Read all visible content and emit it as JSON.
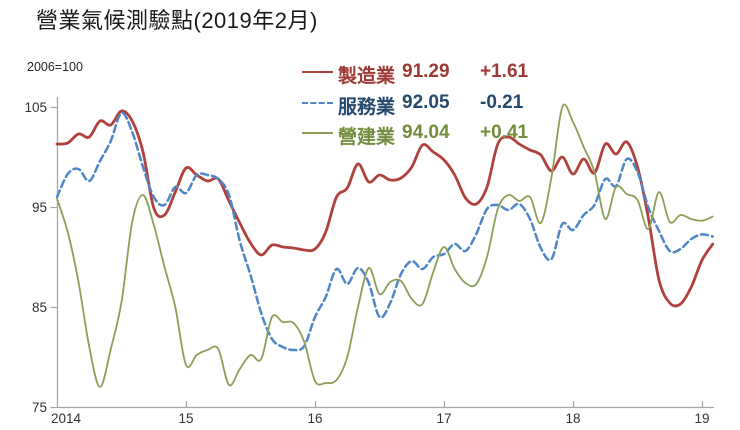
{
  "page": {
    "title": "營業氣候測驗點(2019年2月)"
  },
  "legend": {
    "items": [
      {
        "label": "製造業",
        "value": "91.29",
        "change": "+1.61",
        "text_color": "#9e3a35",
        "line_color": "#b0413c",
        "line_style": "solid"
      },
      {
        "label": "服務業",
        "value": "92.05",
        "change": "-0.21",
        "text_color": "#25496b",
        "line_color": "#4e86c6",
        "line_style": "dashed"
      },
      {
        "label": "營建業",
        "value": "94.04",
        "change": "+0.41",
        "text_color": "#748d3d",
        "line_color": "#8b9f57",
        "line_style": "solid"
      }
    ]
  },
  "chart_data": {
    "type": "line",
    "title": "營業氣候測驗點(2019年2月)",
    "y_note": "2006=100",
    "x_start_year": 2014,
    "x_step_months": 1,
    "x_tick_labels": [
      "2014",
      "15",
      "16",
      "17",
      "18",
      "19"
    ],
    "y_ticks": [
      105,
      95,
      85,
      75
    ],
    "ylim": [
      75,
      105.5
    ],
    "xlim": [
      2014.0,
      2019.17
    ],
    "grid": false,
    "legend_position": "top",
    "axis_color": "#a6a6a6",
    "tick_label_color": "#333333",
    "series": [
      {
        "name": "製造業",
        "color": "#b0413c",
        "dash": null,
        "width": 2.8,
        "values": [
          101.3,
          101.4,
          102.3,
          102.0,
          103.6,
          103.2,
          104.6,
          103.6,
          100.5,
          94.9,
          94.2,
          96.5,
          98.9,
          98.2,
          97.6,
          97.8,
          95.6,
          93.4,
          91.4,
          90.2,
          91.2,
          91.0,
          90.9,
          90.7,
          90.8,
          92.5,
          96.0,
          96.9,
          99.3,
          97.5,
          98.2,
          97.7,
          97.9,
          99.0,
          101.2,
          100.5,
          99.7,
          98.2,
          95.9,
          95.3,
          97.0,
          101.3,
          102.0,
          101.3,
          100.7,
          100.2,
          98.6,
          100.0,
          98.3,
          99.8,
          98.4,
          101.3,
          100.3,
          101.5,
          99.0,
          94.0,
          87.7,
          85.4,
          85.3,
          87.0,
          89.68,
          91.29
        ]
      },
      {
        "name": "服務業",
        "color": "#4e86c6",
        "dash": "7 4",
        "width": 2.5,
        "values": [
          96.0,
          98.3,
          98.8,
          97.6,
          99.6,
          101.6,
          104.4,
          102.5,
          99.0,
          96.0,
          95.2,
          97.0,
          96.4,
          98.2,
          98.2,
          97.8,
          96.2,
          91.6,
          88.2,
          84.4,
          81.8,
          81.0,
          80.7,
          81.1,
          84.0,
          86.0,
          88.8,
          87.3,
          88.9,
          87.4,
          84.0,
          85.4,
          88.3,
          89.6,
          88.8,
          90.0,
          90.3,
          91.3,
          90.6,
          92.3,
          94.8,
          95.2,
          94.7,
          95.3,
          93.8,
          90.9,
          89.8,
          93.3,
          92.7,
          94.2,
          95.2,
          97.8,
          97.1,
          99.8,
          98.5,
          95.0,
          92.6,
          90.6,
          90.8,
          91.8,
          92.26,
          92.05
        ]
      },
      {
        "name": "營建業",
        "color": "#8b9f57",
        "dash": null,
        "width": 1.8,
        "values": [
          95.8,
          92.5,
          87.5,
          81.0,
          77.0,
          80.8,
          85.5,
          93.5,
          96.2,
          93.2,
          89.0,
          85.0,
          79.2,
          80.2,
          80.7,
          80.8,
          77.2,
          78.8,
          80.2,
          79.8,
          84.0,
          83.5,
          83.4,
          81.5,
          77.6,
          77.4,
          77.7,
          80.0,
          85.0,
          88.9,
          86.3,
          87.5,
          87.6,
          85.8,
          85.3,
          88.5,
          91.0,
          88.8,
          87.4,
          87.3,
          90.0,
          94.8,
          96.2,
          95.6,
          96.0,
          93.4,
          98.0,
          105.0,
          103.5,
          101.0,
          98.5,
          93.8,
          97.0,
          96.3,
          95.7,
          92.8,
          96.5,
          93.5,
          94.2,
          93.8,
          93.63,
          94.04
        ]
      }
    ]
  }
}
